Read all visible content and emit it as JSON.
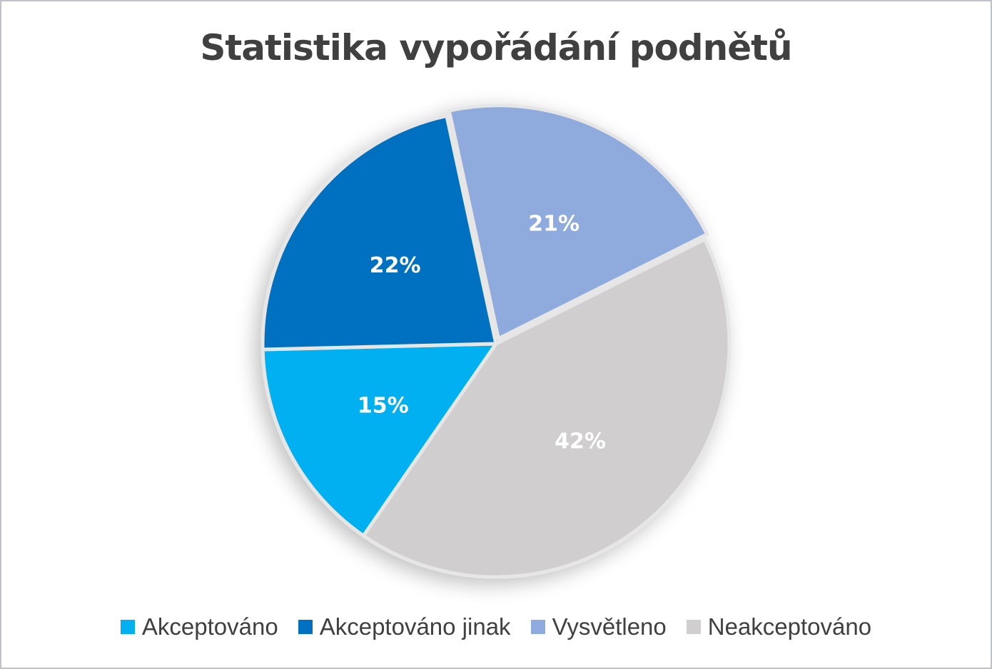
{
  "chart_data": {
    "type": "pie",
    "title": "Statistika vypořádání podnětů",
    "categories": [
      "Akceptováno",
      "Akceptováno jinak",
      "Vysvětleno",
      "Neakceptováno"
    ],
    "values": [
      15,
      22,
      21,
      42
    ],
    "labels": [
      "15%",
      "22%",
      "21%",
      "42%"
    ],
    "colors": [
      "#00B0F0",
      "#0070C0",
      "#8FAADC",
      "#D0CECE"
    ],
    "legend_position": "bottom"
  },
  "title": "Statistika vypořádání podnětů",
  "legend": [
    {
      "label": "Akceptováno",
      "color": "#00B0F0"
    },
    {
      "label": "Akceptováno jinak",
      "color": "#0070C0"
    },
    {
      "label": "Vysvětleno",
      "color": "#8FAADC"
    },
    {
      "label": "Neakceptováno",
      "color": "#D0CECE"
    }
  ]
}
